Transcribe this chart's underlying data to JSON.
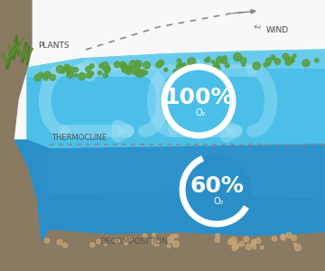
{
  "upper_water_color": "#4bbfe8",
  "upper_water_light": "#7dd4f0",
  "lower_water_color": "#2a8fc8",
  "lower_water_dark": "#1a6fa8",
  "ground_color": "#8a7a62",
  "ground_dark": "#6a5a44",
  "sky_color": "#f8f8f8",
  "algae_color": "#5a9e3a",
  "arrow_color": "#a0dff5",
  "circle_color": "#ffffff",
  "label_color": "#555555",
  "dashed_color": "#888888",
  "thermocline_label": "THERMOCLINE",
  "decomp_label": "DECOMPOSITION",
  "plants_label": "PLANTS",
  "wind_label": "WIND",
  "upper_pct": "100%",
  "lower_pct": "60%",
  "o2_label": "O₂",
  "sediment_color": "#c8a878"
}
